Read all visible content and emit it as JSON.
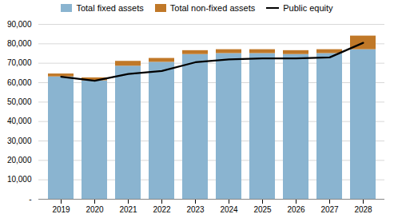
{
  "chart_data": {
    "type": "bar",
    "stacked": true,
    "categories": [
      "2019",
      "2020",
      "2021",
      "2022",
      "2023",
      "2024",
      "2025",
      "2026",
      "2027",
      "2028"
    ],
    "series": [
      {
        "name": "Total fixed assets",
        "color": "#8ab4d0",
        "values": [
          63000,
          61000,
          68500,
          70500,
          74500,
          75000,
          75000,
          74500,
          75000,
          77000
        ]
      },
      {
        "name": "Total non-fixed assets",
        "color": "#c07828",
        "values": [
          1500,
          1500,
          2500,
          2000,
          2000,
          2000,
          2000,
          2000,
          2000,
          7000
        ]
      },
      {
        "name": "Public equity",
        "type": "line",
        "color": "#000000",
        "values": [
          63000,
          61000,
          64500,
          66000,
          70500,
          72000,
          72500,
          72500,
          73000,
          80500
        ]
      }
    ],
    "ylim": [
      0,
      90000
    ],
    "yticks": [
      {
        "value": 0,
        "label": "-"
      },
      {
        "value": 10000,
        "label": "10,000"
      },
      {
        "value": 20000,
        "label": "20,000"
      },
      {
        "value": 30000,
        "label": "30,000"
      },
      {
        "value": 40000,
        "label": "40,000"
      },
      {
        "value": 50000,
        "label": "50,000"
      },
      {
        "value": 60000,
        "label": "60,000"
      },
      {
        "value": 70000,
        "label": "70,000"
      },
      {
        "value": 80000,
        "label": "80,000"
      },
      {
        "value": 90000,
        "label": "90,000"
      }
    ],
    "grid": true,
    "legend": "top"
  }
}
